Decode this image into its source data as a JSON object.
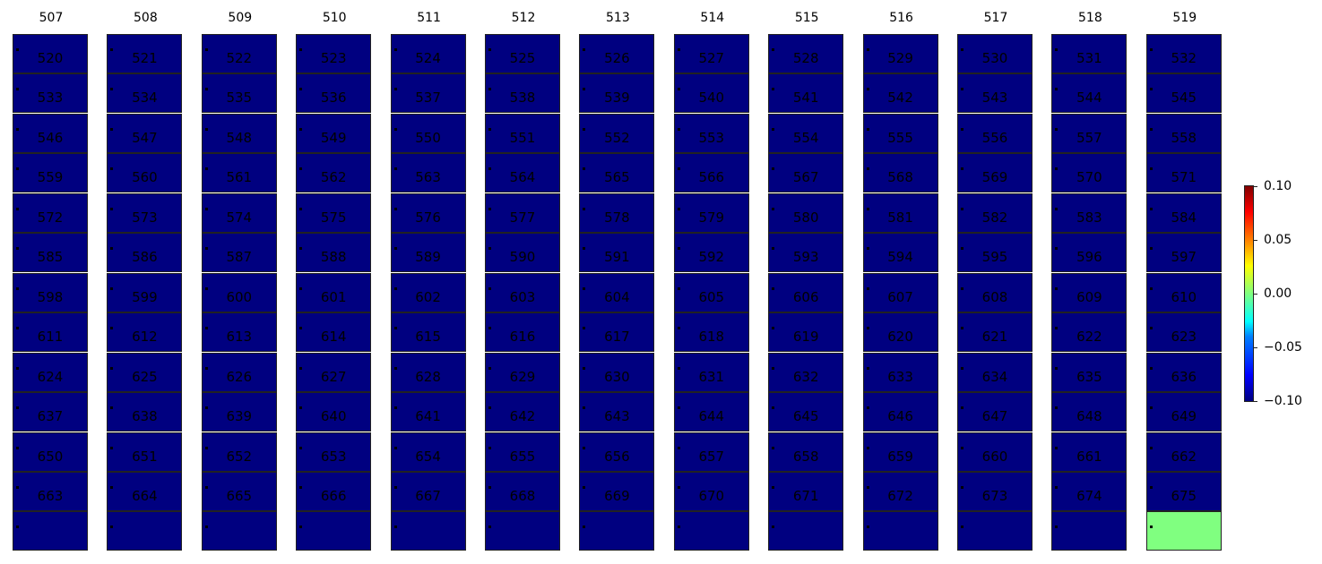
{
  "chart_data": {
    "type": "heatmap",
    "colormap": "jet",
    "column_titles": [
      "507",
      "508",
      "509",
      "510",
      "511",
      "512",
      "513",
      "514",
      "515",
      "516",
      "517",
      "518",
      "519"
    ],
    "cell_labels": [
      [
        "520",
        "521",
        "522",
        "523",
        "524",
        "525",
        "526",
        "527",
        "528",
        "529",
        "530",
        "531",
        "532"
      ],
      [
        "533",
        "534",
        "535",
        "536",
        "537",
        "538",
        "539",
        "540",
        "541",
        "542",
        "543",
        "544",
        "545"
      ],
      [
        "546",
        "547",
        "548",
        "549",
        "550",
        "551",
        "552",
        "553",
        "554",
        "555",
        "556",
        "557",
        "558"
      ],
      [
        "559",
        "560",
        "561",
        "562",
        "563",
        "564",
        "565",
        "566",
        "567",
        "568",
        "569",
        "570",
        "571"
      ],
      [
        "572",
        "573",
        "574",
        "575",
        "576",
        "577",
        "578",
        "579",
        "580",
        "581",
        "582",
        "583",
        "584"
      ],
      [
        "585",
        "586",
        "587",
        "588",
        "589",
        "590",
        "591",
        "592",
        "593",
        "594",
        "595",
        "596",
        "597"
      ],
      [
        "598",
        "599",
        "600",
        "601",
        "602",
        "603",
        "604",
        "605",
        "606",
        "607",
        "608",
        "609",
        "610"
      ],
      [
        "611",
        "612",
        "613",
        "614",
        "615",
        "616",
        "617",
        "618",
        "619",
        "620",
        "621",
        "622",
        "623"
      ],
      [
        "624",
        "625",
        "626",
        "627",
        "628",
        "629",
        "630",
        "631",
        "632",
        "633",
        "634",
        "635",
        "636"
      ],
      [
        "637",
        "638",
        "639",
        "640",
        "641",
        "642",
        "643",
        "644",
        "645",
        "646",
        "647",
        "648",
        "649"
      ],
      [
        "650",
        "651",
        "652",
        "653",
        "654",
        "655",
        "656",
        "657",
        "658",
        "659",
        "660",
        "661",
        "662"
      ],
      [
        "663",
        "664",
        "665",
        "666",
        "667",
        "668",
        "669",
        "670",
        "671",
        "672",
        "673",
        "674",
        "675"
      ],
      [
        "",
        "",
        "",
        "",
        "",
        "",
        "",
        "",
        "",
        "",
        "",
        "",
        ""
      ]
    ],
    "default_value": -0.1,
    "special_cells": [
      {
        "row": 12,
        "col": 12,
        "value": 0.0
      }
    ],
    "colorbar": {
      "range": [
        -0.1,
        0.1
      ],
      "ticks": [
        "0.10",
        "0.05",
        "0.00",
        "−0.05",
        "−0.10"
      ],
      "tick_values": [
        0.1,
        0.05,
        0,
        -0.05,
        -0.1
      ]
    },
    "colors": {
      "min": "#000080",
      "zero": "#80ff80"
    }
  }
}
